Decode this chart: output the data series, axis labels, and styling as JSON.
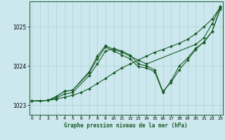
{
  "xlabel": "Graphe pression niveau de la mer (hPa)",
  "background_color": "#cce8ee",
  "grid_color": "#aad0d8",
  "line_color": "#1a5c28",
  "marker": "D",
  "markersize": 2.0,
  "linewidth": 0.8,
  "ylim": [
    1022.75,
    1025.65
  ],
  "xlim": [
    -0.3,
    23.3
  ],
  "yticks": [
    1023,
    1024,
    1025
  ],
  "xticks": [
    0,
    1,
    2,
    3,
    4,
    5,
    6,
    7,
    8,
    9,
    10,
    11,
    12,
    13,
    14,
    15,
    16,
    17,
    18,
    19,
    20,
    21,
    22,
    23
  ],
  "lines": [
    {
      "x": [
        0,
        1,
        2,
        3,
        4,
        5,
        6,
        7,
        8,
        9,
        10,
        11,
        12,
        13,
        14,
        15,
        16,
        17,
        18,
        19,
        20,
        21,
        22,
        23
      ],
      "y": [
        1023.1,
        1023.1,
        1023.12,
        1023.15,
        1023.2,
        1023.25,
        1023.32,
        1023.42,
        1023.55,
        1023.68,
        1023.82,
        1023.95,
        1024.05,
        1024.15,
        1024.25,
        1024.35,
        1024.42,
        1024.5,
        1024.58,
        1024.68,
        1024.82,
        1025.0,
        1025.2,
        1025.5
      ]
    },
    {
      "x": [
        0,
        2,
        3,
        4,
        5,
        7,
        8,
        9,
        10,
        11,
        12,
        13,
        14,
        15,
        16,
        17,
        18,
        19,
        20,
        21,
        22,
        23
      ],
      "y": [
        1023.1,
        1023.12,
        1023.18,
        1023.28,
        1023.32,
        1023.75,
        1024.05,
        1024.38,
        1024.45,
        1024.38,
        1024.28,
        1024.05,
        1024.0,
        1023.9,
        1023.35,
        1023.58,
        1023.9,
        1024.15,
        1024.42,
        1024.62,
        1024.88,
        1025.45
      ]
    },
    {
      "x": [
        0,
        2,
        3,
        4,
        5,
        7,
        8,
        9,
        10,
        11,
        12,
        14,
        20,
        21,
        22,
        23
      ],
      "y": [
        1023.1,
        1023.12,
        1023.22,
        1023.35,
        1023.38,
        1023.85,
        1024.25,
        1024.52,
        1024.42,
        1024.35,
        1024.25,
        1024.05,
        1024.55,
        1024.72,
        1025.08,
        1025.52
      ]
    },
    {
      "x": [
        0,
        2,
        3,
        4,
        5,
        7,
        8,
        9,
        10,
        11,
        12,
        13,
        14,
        15,
        16,
        17,
        18,
        19,
        20,
        21,
        22,
        23
      ],
      "y": [
        1023.1,
        1023.12,
        1023.22,
        1023.35,
        1023.38,
        1023.82,
        1024.18,
        1024.48,
        1024.38,
        1024.28,
        1024.18,
        1023.98,
        1023.95,
        1023.85,
        1023.32,
        1023.62,
        1024.0,
        1024.2,
        1024.45,
        1024.6,
        1024.88,
        1025.48
      ]
    }
  ]
}
